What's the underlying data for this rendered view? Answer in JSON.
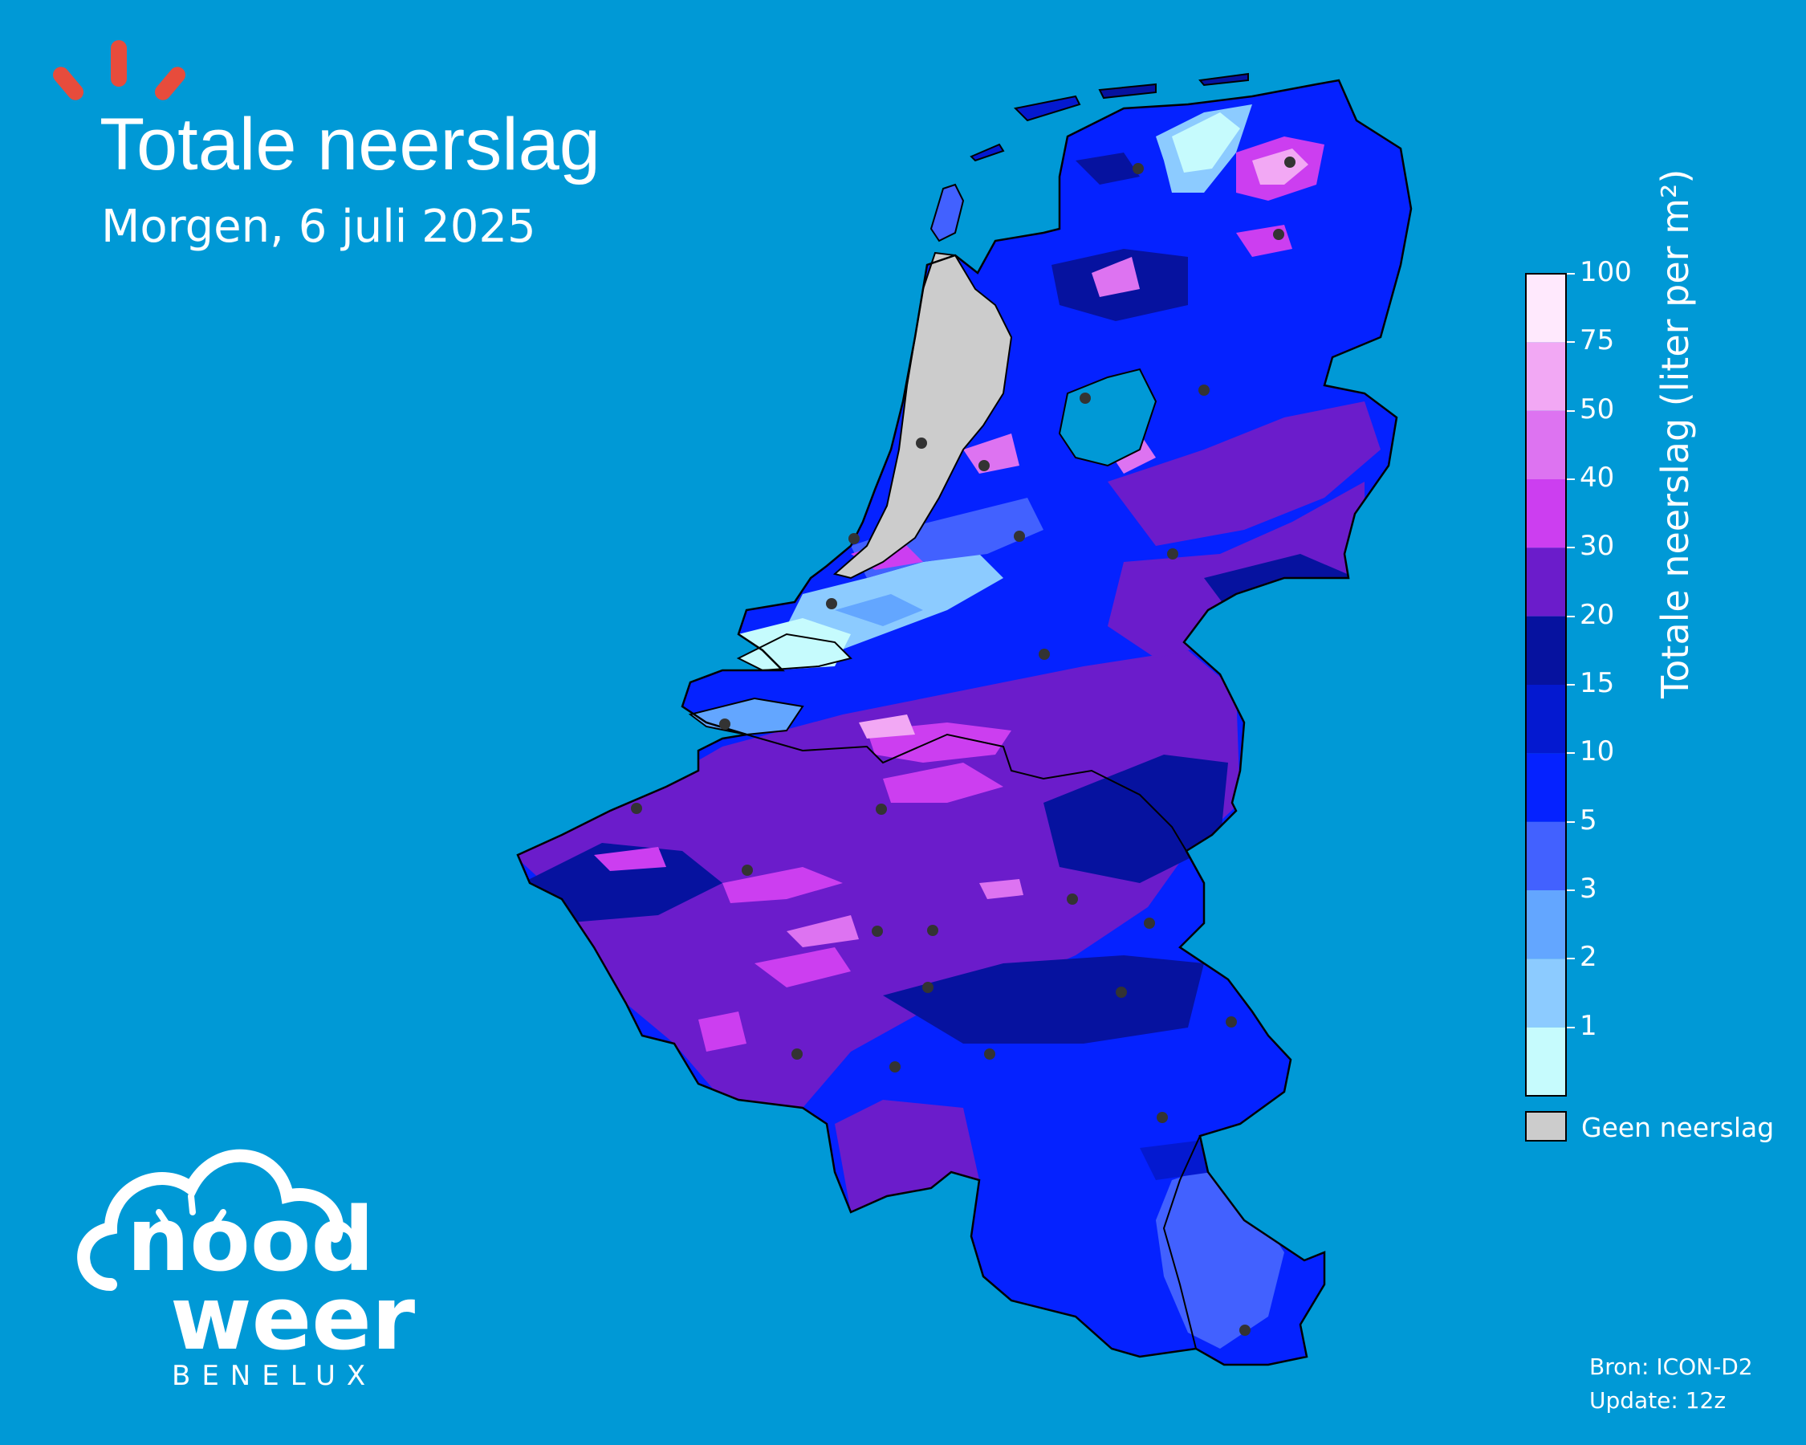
{
  "header": {
    "title": "Totale neerslag",
    "subtitle": "Morgen, 6 juli 2025"
  },
  "legend": {
    "title": "Totale neerslag (liter per m²)",
    "ticks": [
      "1",
      "2",
      "3",
      "5",
      "10",
      "15",
      "20",
      "30",
      "40",
      "50",
      "75",
      "100"
    ],
    "bins": [
      {
        "range": "<1",
        "color": "#c6fbfd"
      },
      {
        "range": "1-2",
        "color": "#8ccbff"
      },
      {
        "range": "2-3",
        "color": "#63a6ff"
      },
      {
        "range": "3-5",
        "color": "#4261ff"
      },
      {
        "range": "5-10",
        "color": "#0522ff"
      },
      {
        "range": "10-15",
        "color": "#0419d0"
      },
      {
        "range": "15-20",
        "color": "#06129f"
      },
      {
        "range": "20-30",
        "color": "#6b1ccb"
      },
      {
        "range": "30-40",
        "color": "#cc3ef0"
      },
      {
        "range": "40-50",
        "color": "#dd73f1"
      },
      {
        "range": "50-75",
        "color": "#f2a8f4"
      },
      {
        "range": "75-100",
        "color": "#ffe9fd"
      }
    ],
    "no_rain_label": "Geen neerslag",
    "no_rain_color": "#cccccc"
  },
  "footer": {
    "source": "Bron: ICON-D2",
    "update": "Update: 12z"
  },
  "logo": {
    "line1": "nood",
    "line2": "weer",
    "line3": "BENELUX",
    "ray_color": "#e74c3c"
  }
}
